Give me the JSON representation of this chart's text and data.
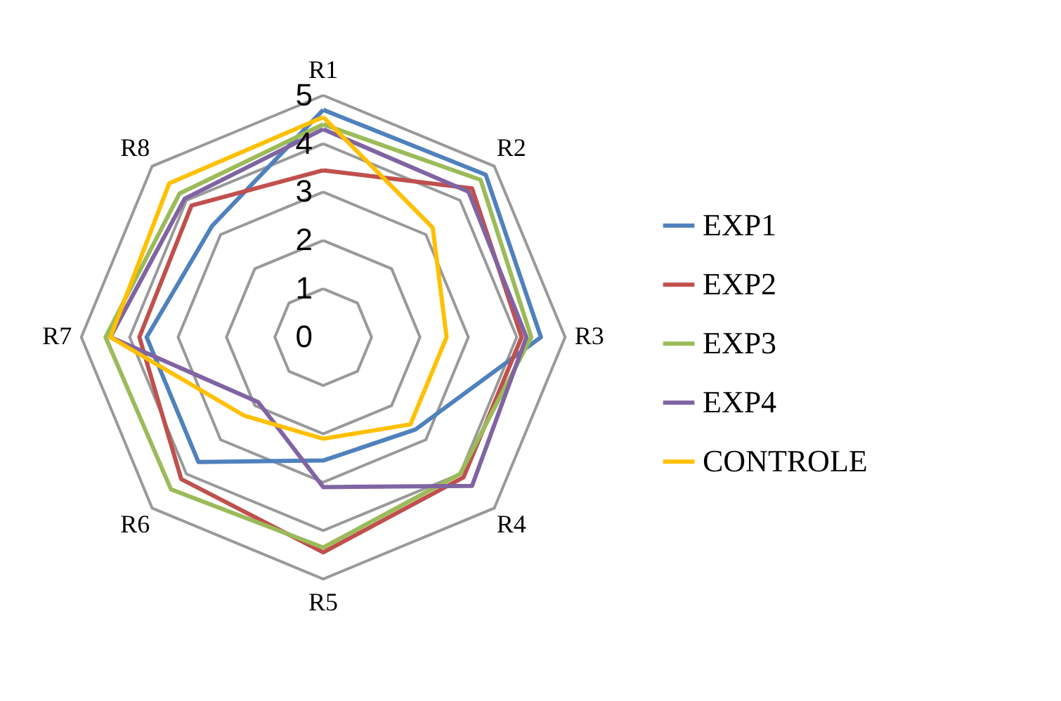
{
  "chart_data": {
    "type": "radar",
    "categories": [
      "R1",
      "R2",
      "R3",
      "R4",
      "R5",
      "R6",
      "R7",
      "R8"
    ],
    "series": [
      {
        "name": "EXP1",
        "color": "#4f81bd",
        "values": [
          4.7,
          4.75,
          4.5,
          2.7,
          2.55,
          3.65,
          3.65,
          3.25
        ]
      },
      {
        "name": "EXP2",
        "color": "#c0504d",
        "values": [
          3.45,
          4.35,
          4.1,
          4.1,
          4.45,
          4.15,
          3.8,
          3.85
        ]
      },
      {
        "name": "EXP3",
        "color": "#9bbb59",
        "values": [
          4.4,
          4.6,
          4.3,
          4.0,
          4.35,
          4.45,
          4.5,
          4.2
        ]
      },
      {
        "name": "EXP4",
        "color": "#8064a2",
        "values": [
          4.3,
          4.25,
          4.2,
          4.35,
          3.1,
          1.9,
          4.4,
          4.05
        ]
      },
      {
        "name": "CONTROLE",
        "color": "#ffc000",
        "values": [
          4.55,
          3.2,
          2.55,
          2.55,
          2.1,
          2.3,
          4.4,
          4.5
        ]
      }
    ],
    "ylim": [
      0,
      5
    ],
    "yticks": [
      0,
      1,
      2,
      3,
      4,
      5
    ],
    "grid": true,
    "legend": "right"
  }
}
